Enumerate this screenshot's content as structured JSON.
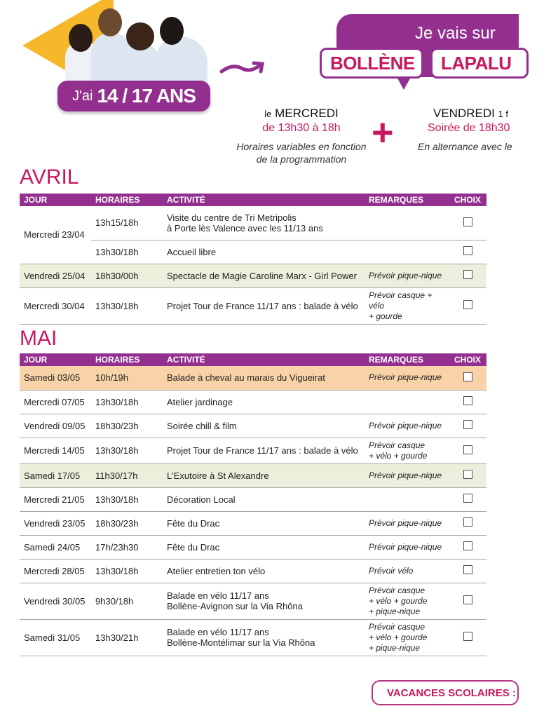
{
  "header": {
    "age_prefix": "J'ai",
    "age_range": "14 / 17 ANS",
    "bubble_title": "Je vais sur",
    "cities": [
      "BOLLÈNE",
      "LAPALU"
    ],
    "left_schedule": {
      "prefix": "le",
      "day": "MERCREDI",
      "time": "de 13h30 à 18h",
      "note1": "Horaires variables en fonction",
      "note2": "de la programmation"
    },
    "plus": "+",
    "right_schedule": {
      "day": "VENDREDI",
      "suffix": "1 f",
      "time": "Soirée de 18h30",
      "note1": "En alternance avec le"
    }
  },
  "columns": [
    "JOUR",
    "HORAIRES",
    "ACTIVITÉ",
    "REMARQUES",
    "CHOIX"
  ],
  "months": [
    {
      "name": "AVRIL",
      "rows": [
        {
          "day": "Mercredi 23/04",
          "entries": [
            {
              "time": "13h15/18h",
              "activity": "Visite du centre de Tri Metripolis\nà Porte lès Valence avec les 11/13 ans",
              "remark": ""
            },
            {
              "time": "13h30/18h",
              "activity": "Accueil libre",
              "remark": ""
            }
          ]
        },
        {
          "day": "Vendredi 25/04",
          "color": "green",
          "entries": [
            {
              "time": "18h30/00h",
              "activity": "Spectacle de Magie Caroline Marx - Girl Power",
              "remark": "Prévoir pique-nique"
            }
          ]
        },
        {
          "day": "Mercredi 30/04",
          "entries": [
            {
              "time": "13h30/18h",
              "activity": "Projet Tour de France 11/17 ans : balade à vélo",
              "remark": "Prévoir casque + vélo\n+ gourde"
            }
          ]
        }
      ]
    },
    {
      "name": "MAI",
      "rows": [
        {
          "day": "Samedi 03/05",
          "color": "orange",
          "entries": [
            {
              "time": "10h/19h",
              "activity": "Balade à cheval au marais du Vigueirat",
              "remark": "Prévoir pique-nique"
            }
          ]
        },
        {
          "day": "Mercredi 07/05",
          "entries": [
            {
              "time": "13h30/18h",
              "activity": "Atelier jardinage",
              "remark": ""
            }
          ]
        },
        {
          "day": "Vendredi 09/05",
          "entries": [
            {
              "time": "18h30/23h",
              "activity": "Soirée chill & film",
              "remark": "Prévoir pique-nique"
            }
          ]
        },
        {
          "day": "Mercredi 14/05",
          "entries": [
            {
              "time": "13h30/18h",
              "activity": "Projet Tour de France 11/17 ans : balade à vélo",
              "remark": "Prévoir casque\n+ vélo + gourde"
            }
          ]
        },
        {
          "day": "Samedi 17/05",
          "color": "green",
          "entries": [
            {
              "time": "11h30/17h",
              "activity": "L'Exutoire à St Alexandre",
              "remark": "Prévoir pique-nique"
            }
          ]
        },
        {
          "day": "Mercredi 21/05",
          "entries": [
            {
              "time": "13h30/18h",
              "activity": "Décoration Local",
              "remark": ""
            }
          ]
        },
        {
          "day": "Vendredi 23/05",
          "entries": [
            {
              "time": "18h30/23h",
              "activity": "Fête du Drac",
              "remark": "Prévoir pique-nique"
            }
          ]
        },
        {
          "day": "Samedi 24/05",
          "entries": [
            {
              "time": "17h/23h30",
              "activity": "Fête du Drac",
              "remark": "Prévoir pique-nique"
            }
          ]
        },
        {
          "day": "Mercredi 28/05",
          "entries": [
            {
              "time": "13h30/18h",
              "activity": "Atelier entretien ton vélo",
              "remark": "Prévoir vélo"
            }
          ]
        },
        {
          "day": "Vendredi 30/05",
          "entries": [
            {
              "time": "9h30/18h",
              "activity": "Balade en vélo 11/17 ans\nBollène-Avignon sur la Via Rhôna",
              "remark": "Prévoir casque\n+ vélo + gourde\n+ pique-nique"
            }
          ]
        },
        {
          "day": "Samedi 31/05",
          "entries": [
            {
              "time": "13h30/21h",
              "activity": "Balade en vélo 11/17 ans\nBollène-Montélimar sur la Via Rhôna",
              "remark": "Prévoir casque\n+ vélo + gourde\n+ pique-nique"
            }
          ]
        }
      ]
    }
  ],
  "footer": {
    "vacances": "VACANCES SCOLAIRES :"
  },
  "colors": {
    "purple": "#93308f",
    "pink": "#c8185f",
    "green_row": "#eaf0dc",
    "orange_row": "#f9d3a8",
    "yellow": "#f6b82a"
  }
}
